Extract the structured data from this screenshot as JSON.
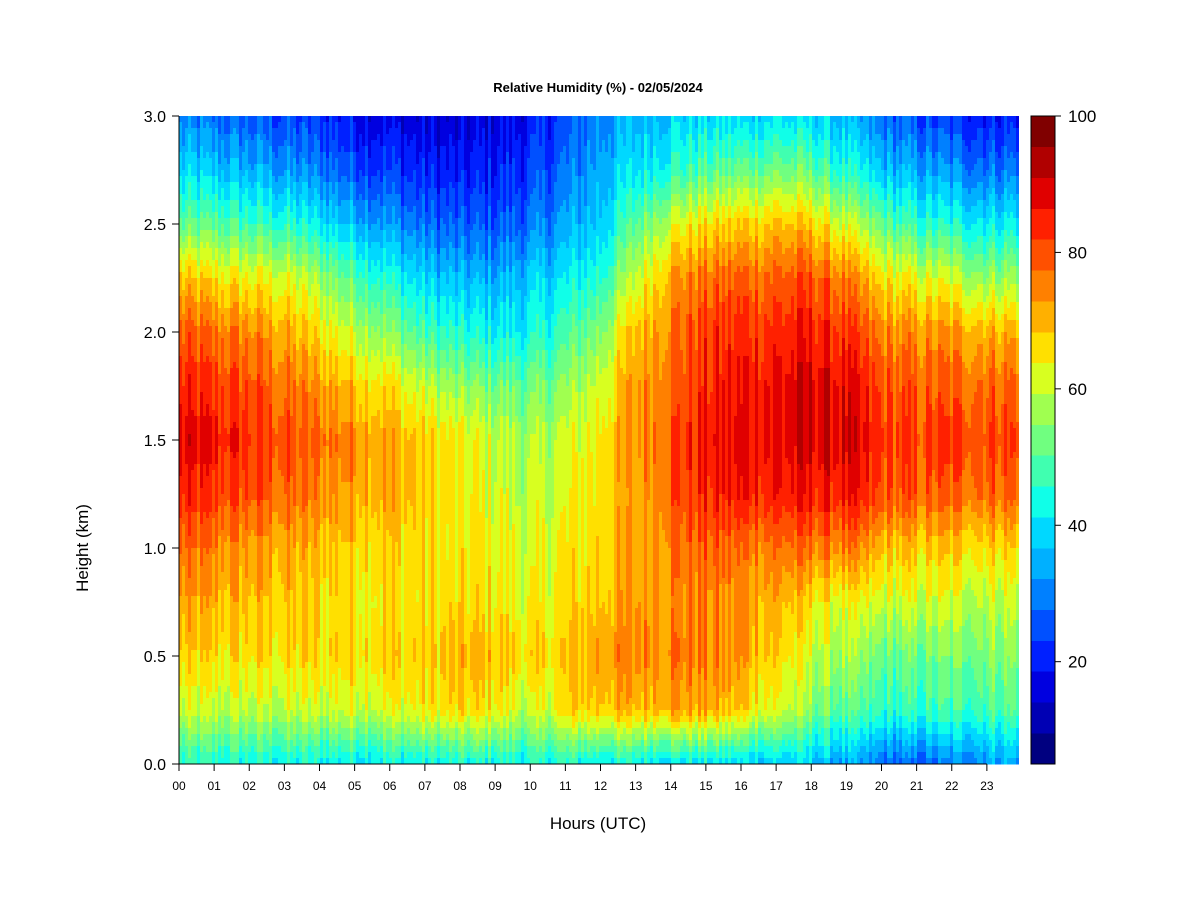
{
  "chart_data": {
    "type": "heatmap",
    "title": "Relative Humidity (%) - 02/05/2024",
    "xlabel": "Hours (UTC)",
    "ylabel": "Height (km)",
    "x_ticks": [
      "00",
      "01",
      "02",
      "03",
      "04",
      "05",
      "06",
      "07",
      "08",
      "09",
      "10",
      "11",
      "12",
      "13",
      "14",
      "15",
      "16",
      "17",
      "18",
      "19",
      "20",
      "21",
      "22",
      "23"
    ],
    "xlim": [
      0,
      24
    ],
    "y_ticks": [
      "0.0",
      "0.5",
      "1.0",
      "1.5",
      "2.0",
      "2.5",
      "3.0"
    ],
    "ylim": [
      0,
      3
    ],
    "colorbar": {
      "min": 5,
      "max": 100,
      "step": 5,
      "tick_labels": [
        "20",
        "40",
        "60",
        "80",
        "100"
      ],
      "colors": [
        "#000080",
        "#0000b4",
        "#0000e0",
        "#0020ff",
        "#0050ff",
        "#0080ff",
        "#00b0ff",
        "#00d8ff",
        "#10ffe8",
        "#40ffb0",
        "#70ff80",
        "#a0ff50",
        "#d8ff20",
        "#ffe000",
        "#ffb000",
        "#ff8000",
        "#ff5000",
        "#ff2000",
        "#e00000",
        "#b00000",
        "#800000"
      ]
    },
    "hours": [
      0,
      1,
      2,
      3,
      4,
      5,
      6,
      7,
      8,
      9,
      10,
      11,
      12,
      13,
      14,
      15,
      16,
      17,
      18,
      19,
      20,
      21,
      22,
      23,
      24
    ],
    "heights_km": [
      0.0,
      0.25,
      0.5,
      0.75,
      1.0,
      1.25,
      1.5,
      1.75,
      2.0,
      2.25,
      2.5,
      2.75,
      3.0
    ],
    "values": [
      [
        48,
        65,
        73,
        78,
        84,
        92,
        96,
        92,
        86,
        75,
        55,
        42,
        32
      ],
      [
        48,
        65,
        72,
        77,
        82,
        90,
        94,
        90,
        84,
        72,
        55,
        40,
        30
      ],
      [
        47,
        65,
        72,
        76,
        80,
        88,
        92,
        88,
        82,
        70,
        52,
        38,
        28
      ],
      [
        46,
        65,
        72,
        75,
        78,
        85,
        88,
        84,
        78,
        68,
        50,
        35,
        26
      ],
      [
        46,
        66,
        73,
        73,
        76,
        82,
        85,
        80,
        72,
        62,
        45,
        32,
        24
      ],
      [
        46,
        68,
        74,
        72,
        75,
        80,
        82,
        76,
        66,
        55,
        40,
        28,
        20
      ],
      [
        46,
        68,
        74,
        72,
        74,
        78,
        78,
        72,
        60,
        48,
        35,
        25,
        18
      ],
      [
        46,
        70,
        74,
        72,
        72,
        74,
        74,
        65,
        52,
        42,
        30,
        22,
        16
      ],
      [
        46,
        72,
        76,
        72,
        70,
        70,
        70,
        60,
        48,
        38,
        28,
        20,
        15
      ],
      [
        47,
        72,
        76,
        72,
        70,
        68,
        66,
        58,
        46,
        38,
        28,
        22,
        18
      ],
      [
        46,
        64,
        72,
        68,
        66,
        64,
        62,
        56,
        46,
        40,
        30,
        24,
        20
      ],
      [
        48,
        72,
        74,
        72,
        70,
        68,
        66,
        60,
        52,
        44,
        36,
        30,
        26
      ],
      [
        46,
        76,
        80,
        76,
        74,
        72,
        72,
        68,
        60,
        50,
        42,
        38,
        34
      ],
      [
        46,
        76,
        82,
        80,
        78,
        78,
        80,
        80,
        76,
        66,
        55,
        44,
        38
      ],
      [
        44,
        80,
        84,
        82,
        84,
        88,
        88,
        86,
        84,
        80,
        68,
        50,
        42
      ],
      [
        44,
        78,
        82,
        82,
        86,
        92,
        94,
        92,
        90,
        84,
        72,
        54,
        42
      ],
      [
        42,
        74,
        80,
        80,
        84,
        94,
        96,
        94,
        92,
        86,
        74,
        56,
        42
      ],
      [
        42,
        68,
        74,
        78,
        84,
        94,
        96,
        96,
        92,
        86,
        76,
        58,
        44
      ],
      [
        40,
        60,
        66,
        72,
        84,
        94,
        98,
        98,
        94,
        88,
        74,
        56,
        42
      ],
      [
        36,
        54,
        62,
        68,
        82,
        94,
        98,
        96,
        90,
        82,
        66,
        48,
        38
      ],
      [
        30,
        50,
        56,
        66,
        76,
        88,
        90,
        88,
        82,
        72,
        56,
        40,
        30
      ],
      [
        28,
        50,
        56,
        66,
        74,
        86,
        88,
        86,
        80,
        68,
        50,
        36,
        26
      ],
      [
        32,
        52,
        58,
        66,
        74,
        86,
        90,
        86,
        80,
        66,
        48,
        34,
        24
      ],
      [
        36,
        54,
        60,
        66,
        74,
        86,
        90,
        86,
        78,
        62,
        46,
        32,
        22
      ],
      [
        38,
        55,
        60,
        66,
        74,
        86,
        90,
        86,
        78,
        62,
        46,
        32,
        22
      ]
    ],
    "data_end_hour": 23.9,
    "grid": false,
    "legend": "right"
  }
}
